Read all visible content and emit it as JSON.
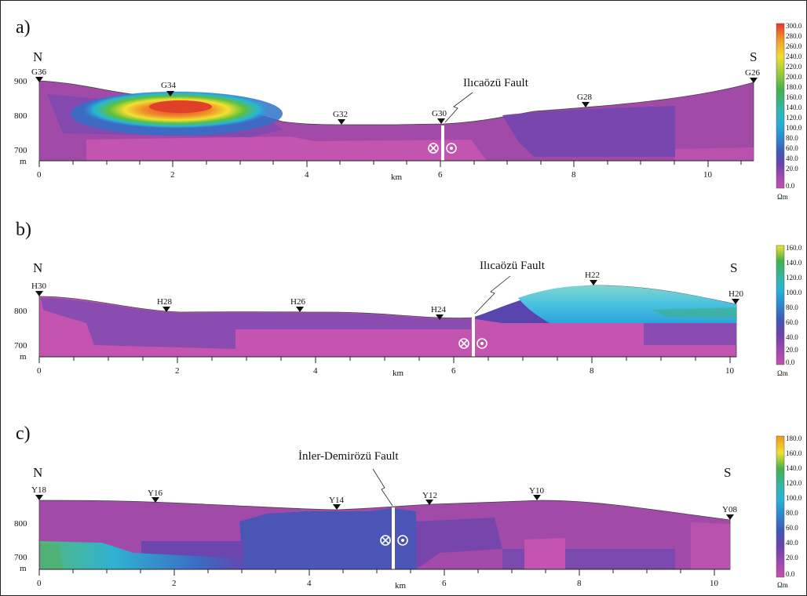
{
  "frame": {
    "border_color": "#222222"
  },
  "icons": {
    "station_marker": "triangle-down-icon",
    "into_page": "circled-x-icon",
    "out_of_page": "circled-dot-icon"
  },
  "panels": [
    {
      "label": "a)",
      "north": "N",
      "south": "S",
      "fault_name": "Ilıcaözü Fault",
      "x_unit": "km",
      "elev_unit": "m",
      "x_ticks": [
        "0",
        "2",
        "4",
        "6",
        "8",
        "10"
      ],
      "elev_ticks": [
        "900",
        "800",
        "700"
      ],
      "stations": [
        "G36",
        "G34",
        "G32",
        "G30",
        "G28",
        "G26"
      ],
      "colorbar": {
        "ticks": [
          "300.0",
          "280.0",
          "260.0",
          "240.0",
          "220.0",
          "200.0",
          "180.0",
          "160.0",
          "140.0",
          "120.0",
          "100.0",
          "80.0",
          "60.0",
          "40.0",
          "20.0",
          "0.0"
        ],
        "unit": "Ωm"
      }
    },
    {
      "label": "b)",
      "north": "N",
      "south": "S",
      "fault_name": "Ilıcaözü Fault",
      "x_unit": "km",
      "elev_unit": "m",
      "x_ticks": [
        "0",
        "2",
        "4",
        "6",
        "8",
        "10"
      ],
      "elev_ticks": [
        "800",
        "700"
      ],
      "stations": [
        "H30",
        "H28",
        "H26",
        "H24",
        "H22",
        "H20"
      ],
      "colorbar": {
        "ticks": [
          "160.0",
          "140.0",
          "120.0",
          "100.0",
          "80.0",
          "60.0",
          "40.0",
          "20.0",
          "0.0"
        ],
        "unit": "Ωm"
      }
    },
    {
      "label": "c)",
      "north": "N",
      "south": "S",
      "fault_name": "İnler-Demirözü Fault",
      "x_unit": "km",
      "elev_unit": "m",
      "x_ticks": [
        "0",
        "2",
        "4",
        "6",
        "8",
        "10"
      ],
      "elev_ticks": [
        "800",
        "700"
      ],
      "stations": [
        "Y18",
        "Y16",
        "Y14",
        "Y12",
        "Y10",
        "Y08"
      ],
      "colorbar": {
        "ticks": [
          "180.0",
          "160.0",
          "140.0",
          "120.0",
          "100.0",
          "80.0",
          "60.0",
          "40.0",
          "20.0",
          "0.0"
        ],
        "unit": "Ωm"
      }
    }
  ]
}
